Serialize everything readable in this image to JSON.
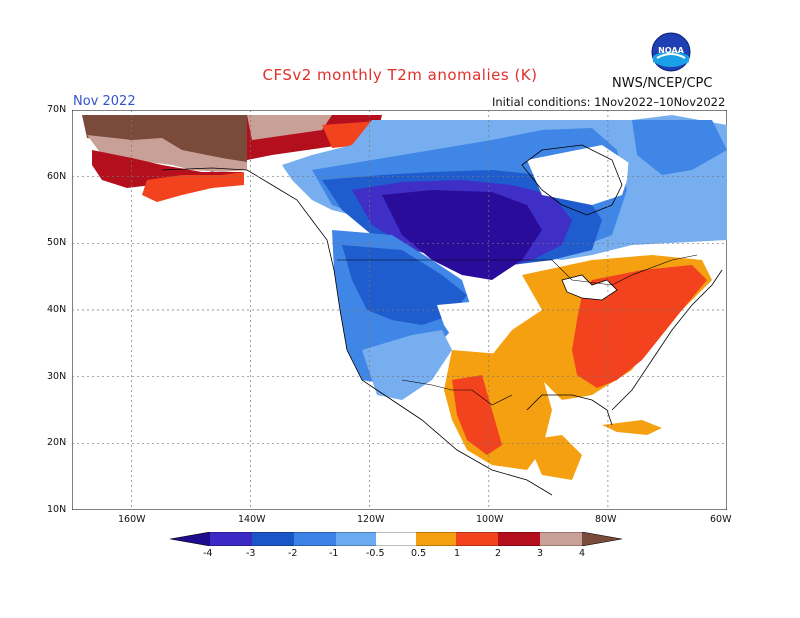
{
  "title": "CFSv2 monthly T2m anomalies (K)",
  "month": "Nov 2022",
  "agency": "NWS/NCEP/CPC",
  "initial_conditions": "Initial conditions: 1Nov2022–10Nov2022",
  "logo_text": "NOAA",
  "map": {
    "lon_range": [
      -170,
      -60
    ],
    "lat_range": [
      10,
      70
    ],
    "lat_labels": [
      "70N",
      "60N",
      "50N",
      "40N",
      "30N",
      "20N",
      "10N"
    ],
    "lon_labels": [
      "160W",
      "140W",
      "120W",
      "100W",
      "80W",
      "60W"
    ],
    "regions": [
      {
        "name": "alaska",
        "anomaly": "3 to 4"
      },
      {
        "name": "western-canada",
        "anomaly": "-1 to -4"
      },
      {
        "name": "northern-plains",
        "anomaly": "-3 to -4"
      },
      {
        "name": "western-us",
        "anomaly": "-0.5 to -2"
      },
      {
        "name": "eastern-us",
        "anomaly": "1 to 2"
      },
      {
        "name": "mexico",
        "anomaly": "0.5 to 2"
      }
    ]
  },
  "colorbar": {
    "labels": [
      "-4",
      "-3",
      "-2",
      "-1",
      "-0.5",
      "0.5",
      "1",
      "2",
      "3",
      "4"
    ],
    "colors": [
      "#1e0c8c",
      "#3b2bc4",
      "#1a56c6",
      "#3b82e4",
      "#6aaaf0",
      "#ffffff",
      "#f5a011",
      "#f2421e",
      "#b40f1c",
      "#c9a097",
      "#7a4a3a"
    ]
  },
  "palette": {
    "deep_cold": "#2a0c9a",
    "cold3": "#3f2fc7",
    "cold2": "#1f5ccd",
    "cold1": "#3f86e6",
    "cold05": "#77aef0",
    "warm05": "#f5a011",
    "warm1": "#f2421e",
    "warm2": "#b40f1c",
    "warm3": "#c9a097",
    "warm4": "#7a4a3a"
  }
}
